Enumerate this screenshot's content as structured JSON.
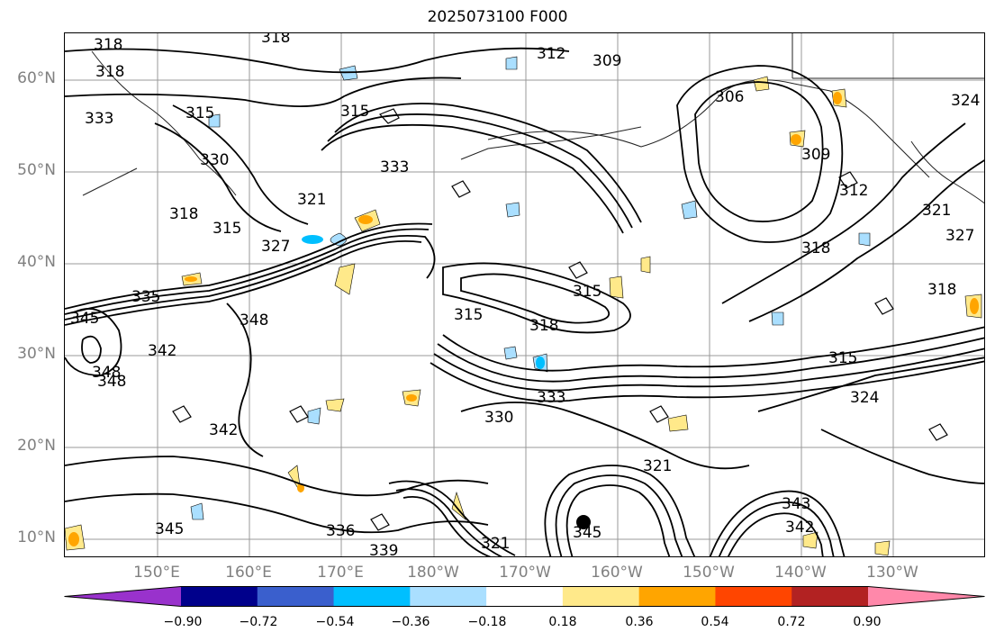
{
  "title": "2025073100 F000",
  "lat_labels": [
    "60°N",
    "50°N",
    "40°N",
    "30°N",
    "20°N",
    "10°N"
  ],
  "lon_labels": [
    "150°E",
    "160°E",
    "170°E",
    "180°W",
    "170°W",
    "160°W",
    "150°W",
    "140°W",
    "130°W"
  ],
  "contour_labels": [
    "318",
    "318",
    "318",
    "312",
    "309",
    "306",
    "324",
    "333",
    "315",
    "315",
    "333",
    "330",
    "321",
    "318",
    "315",
    "327",
    "335",
    "345",
    "348",
    "342",
    "348",
    "348",
    "315",
    "315",
    "318",
    "333",
    "330",
    "324",
    "315",
    "318",
    "312",
    "309",
    "321",
    "327",
    "318",
    "342",
    "336",
    "345",
    "321",
    "339",
    "345",
    "343",
    "342",
    "321"
  ],
  "colorbar": {
    "ticks": [
      "−0.90",
      "−0.72",
      "−0.54",
      "−0.36",
      "−0.18",
      "0.18",
      "0.36",
      "0.54",
      "0.72",
      "0.90"
    ],
    "colors": [
      "#9932cc",
      "#00008b",
      "#3a5fcd",
      "#00bfff",
      "#aadfff",
      "#ffffff",
      "#ffe98a",
      "#ffa500",
      "#ff4500",
      "#b22222",
      "#ff88aa"
    ]
  }
}
